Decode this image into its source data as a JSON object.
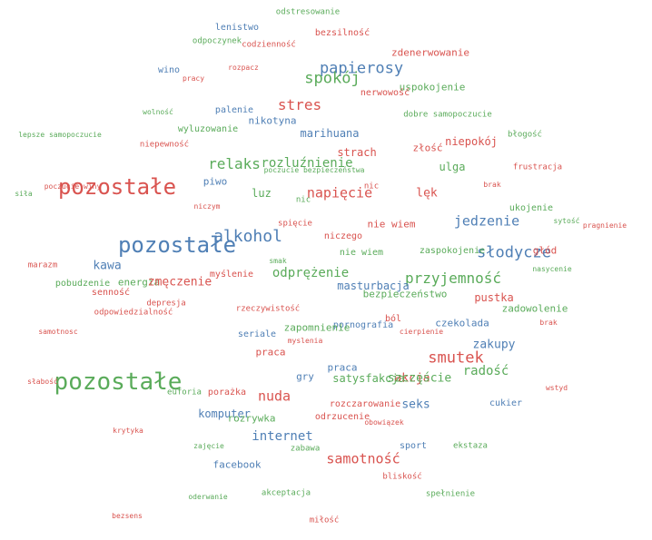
{
  "colors": {
    "red": "#d9534f",
    "green": "#5aab5a",
    "blue": "#4f7fb5"
  },
  "words": [
    {
      "text": "odstresowanie",
      "color": "green"
    },
    {
      "text": "lenistwo",
      "color": "blue"
    },
    {
      "text": "bezsilność",
      "color": "red"
    },
    {
      "text": "odpoczynek",
      "color": "green"
    },
    {
      "text": "codzienność",
      "color": "red"
    },
    {
      "text": "zdenerwowanie",
      "color": "red"
    },
    {
      "text": "papierosy",
      "color": "blue"
    },
    {
      "text": "wino",
      "color": "blue"
    },
    {
      "text": "rozpacz",
      "color": "red"
    },
    {
      "text": "spokój",
      "color": "green"
    },
    {
      "text": "pracy",
      "color": "red"
    },
    {
      "text": "uspokojenie",
      "color": "green"
    },
    {
      "text": "nerwowość",
      "color": "red"
    },
    {
      "text": "stres",
      "color": "red"
    },
    {
      "text": "wolność",
      "color": "green"
    },
    {
      "text": "palenie",
      "color": "blue"
    },
    {
      "text": "dobre samopoczucie",
      "color": "green"
    },
    {
      "text": "nikotyna",
      "color": "blue"
    },
    {
      "text": "wyluzowanie",
      "color": "green"
    },
    {
      "text": "lepsze samopoczucie",
      "color": "green"
    },
    {
      "text": "marihuana",
      "color": "blue"
    },
    {
      "text": "błogość",
      "color": "green"
    },
    {
      "text": "niepokój",
      "color": "red"
    },
    {
      "text": "niepewność",
      "color": "red"
    },
    {
      "text": "złość",
      "color": "red"
    },
    {
      "text": "strach",
      "color": "red"
    },
    {
      "text": "relaks",
      "color": "green"
    },
    {
      "text": "rozluźnienie",
      "color": "green"
    },
    {
      "text": "ulga",
      "color": "green"
    },
    {
      "text": "frustracja",
      "color": "red"
    },
    {
      "text": "poczucie bezpieczeństwa",
      "color": "green"
    },
    {
      "text": "piwo",
      "color": "blue"
    },
    {
      "text": "pozostałe",
      "color": "red"
    },
    {
      "text": "siła",
      "color": "green"
    },
    {
      "text": "poczucie winy",
      "color": "red"
    },
    {
      "text": "brak",
      "color": "red"
    },
    {
      "text": "luz",
      "color": "green"
    },
    {
      "text": "napięcie",
      "color": "red"
    },
    {
      "text": "nic",
      "color": "red"
    },
    {
      "text": "lęk",
      "color": "red"
    },
    {
      "text": "nic",
      "color": "green"
    },
    {
      "text": "niczym",
      "color": "red"
    },
    {
      "text": "ukojenie",
      "color": "green"
    },
    {
      "text": "jedzenie",
      "color": "blue"
    },
    {
      "text": "sytość",
      "color": "green"
    },
    {
      "text": "pragnienie",
      "color": "red"
    },
    {
      "text": "alkohol",
      "color": "blue"
    },
    {
      "text": "spięcie",
      "color": "red"
    },
    {
      "text": "nie wiem",
      "color": "red"
    },
    {
      "text": "niczego",
      "color": "red"
    },
    {
      "text": "słodycze",
      "color": "blue"
    },
    {
      "text": "pozostałe",
      "color": "blue"
    },
    {
      "text": "głód",
      "color": "red"
    },
    {
      "text": "nie wiem",
      "color": "green"
    },
    {
      "text": "zaspokojenie",
      "color": "green"
    },
    {
      "text": "kawa",
      "color": "blue"
    },
    {
      "text": "marazm",
      "color": "red"
    },
    {
      "text": "smak",
      "color": "green"
    },
    {
      "text": "nasycenie",
      "color": "green"
    },
    {
      "text": "odprężenie",
      "color": "green"
    },
    {
      "text": "przyjemność",
      "color": "green"
    },
    {
      "text": "myślenie",
      "color": "red"
    },
    {
      "text": "energia",
      "color": "green"
    },
    {
      "text": "zmęczenie",
      "color": "red"
    },
    {
      "text": "pobudzenie",
      "color": "green"
    },
    {
      "text": "masturbacja",
      "color": "blue"
    },
    {
      "text": "senność",
      "color": "red"
    },
    {
      "text": "bezpieczeństwo",
      "color": "green"
    },
    {
      "text": "pustka",
      "color": "red"
    },
    {
      "text": "depresja",
      "color": "red"
    },
    {
      "text": "rzeczywistość",
      "color": "red"
    },
    {
      "text": "zadowolenie",
      "color": "green"
    },
    {
      "text": "odpowiedzialność",
      "color": "red"
    },
    {
      "text": "ból",
      "color": "red"
    },
    {
      "text": "pornografia",
      "color": "blue"
    },
    {
      "text": "czekolada",
      "color": "blue"
    },
    {
      "text": "brak",
      "color": "red"
    },
    {
      "text": "zapomnienie",
      "color": "green"
    },
    {
      "text": "samotnosc",
      "color": "red"
    },
    {
      "text": "seriale",
      "color": "blue"
    },
    {
      "text": "cierpienie",
      "color": "red"
    },
    {
      "text": "myslenia",
      "color": "red"
    },
    {
      "text": "zakupy",
      "color": "blue"
    },
    {
      "text": "praca",
      "color": "red"
    },
    {
      "text": "smutek",
      "color": "red"
    },
    {
      "text": "pozostałe",
      "color": "green"
    },
    {
      "text": "praca",
      "color": "blue"
    },
    {
      "text": "radość",
      "color": "green"
    },
    {
      "text": "porażka",
      "color": "red"
    },
    {
      "text": "gry",
      "color": "blue"
    },
    {
      "text": "satysfakcja",
      "color": "green"
    },
    {
      "text": "akcja",
      "color": "red"
    },
    {
      "text": "szczęście",
      "color": "green"
    },
    {
      "text": "słabość",
      "color": "red"
    },
    {
      "text": "wstyd",
      "color": "red"
    },
    {
      "text": "euforia",
      "color": "green"
    },
    {
      "text": "nuda",
      "color": "red"
    },
    {
      "text": "rozczarowanie",
      "color": "red"
    },
    {
      "text": "seks",
      "color": "blue"
    },
    {
      "text": "cukier",
      "color": "blue"
    },
    {
      "text": "komputer",
      "color": "blue"
    },
    {
      "text": "rozrywka",
      "color": "green"
    },
    {
      "text": "odrzucenie",
      "color": "red"
    },
    {
      "text": "obowiązek",
      "color": "red"
    },
    {
      "text": "krytyka",
      "color": "red"
    },
    {
      "text": "internet",
      "color": "blue"
    },
    {
      "text": "zabawa",
      "color": "green"
    },
    {
      "text": "sport",
      "color": "blue"
    },
    {
      "text": "ekstaza",
      "color": "green"
    },
    {
      "text": "zajęcie",
      "color": "green"
    },
    {
      "text": "samotność",
      "color": "red"
    },
    {
      "text": "facebook",
      "color": "blue"
    },
    {
      "text": "bliskość",
      "color": "red"
    },
    {
      "text": "akceptacja",
      "color": "green"
    },
    {
      "text": "spełnienie",
      "color": "green"
    },
    {
      "text": "oderwanie",
      "color": "green"
    },
    {
      "text": "bezsens",
      "color": "red"
    },
    {
      "text": "miłość",
      "color": "red"
    }
  ]
}
